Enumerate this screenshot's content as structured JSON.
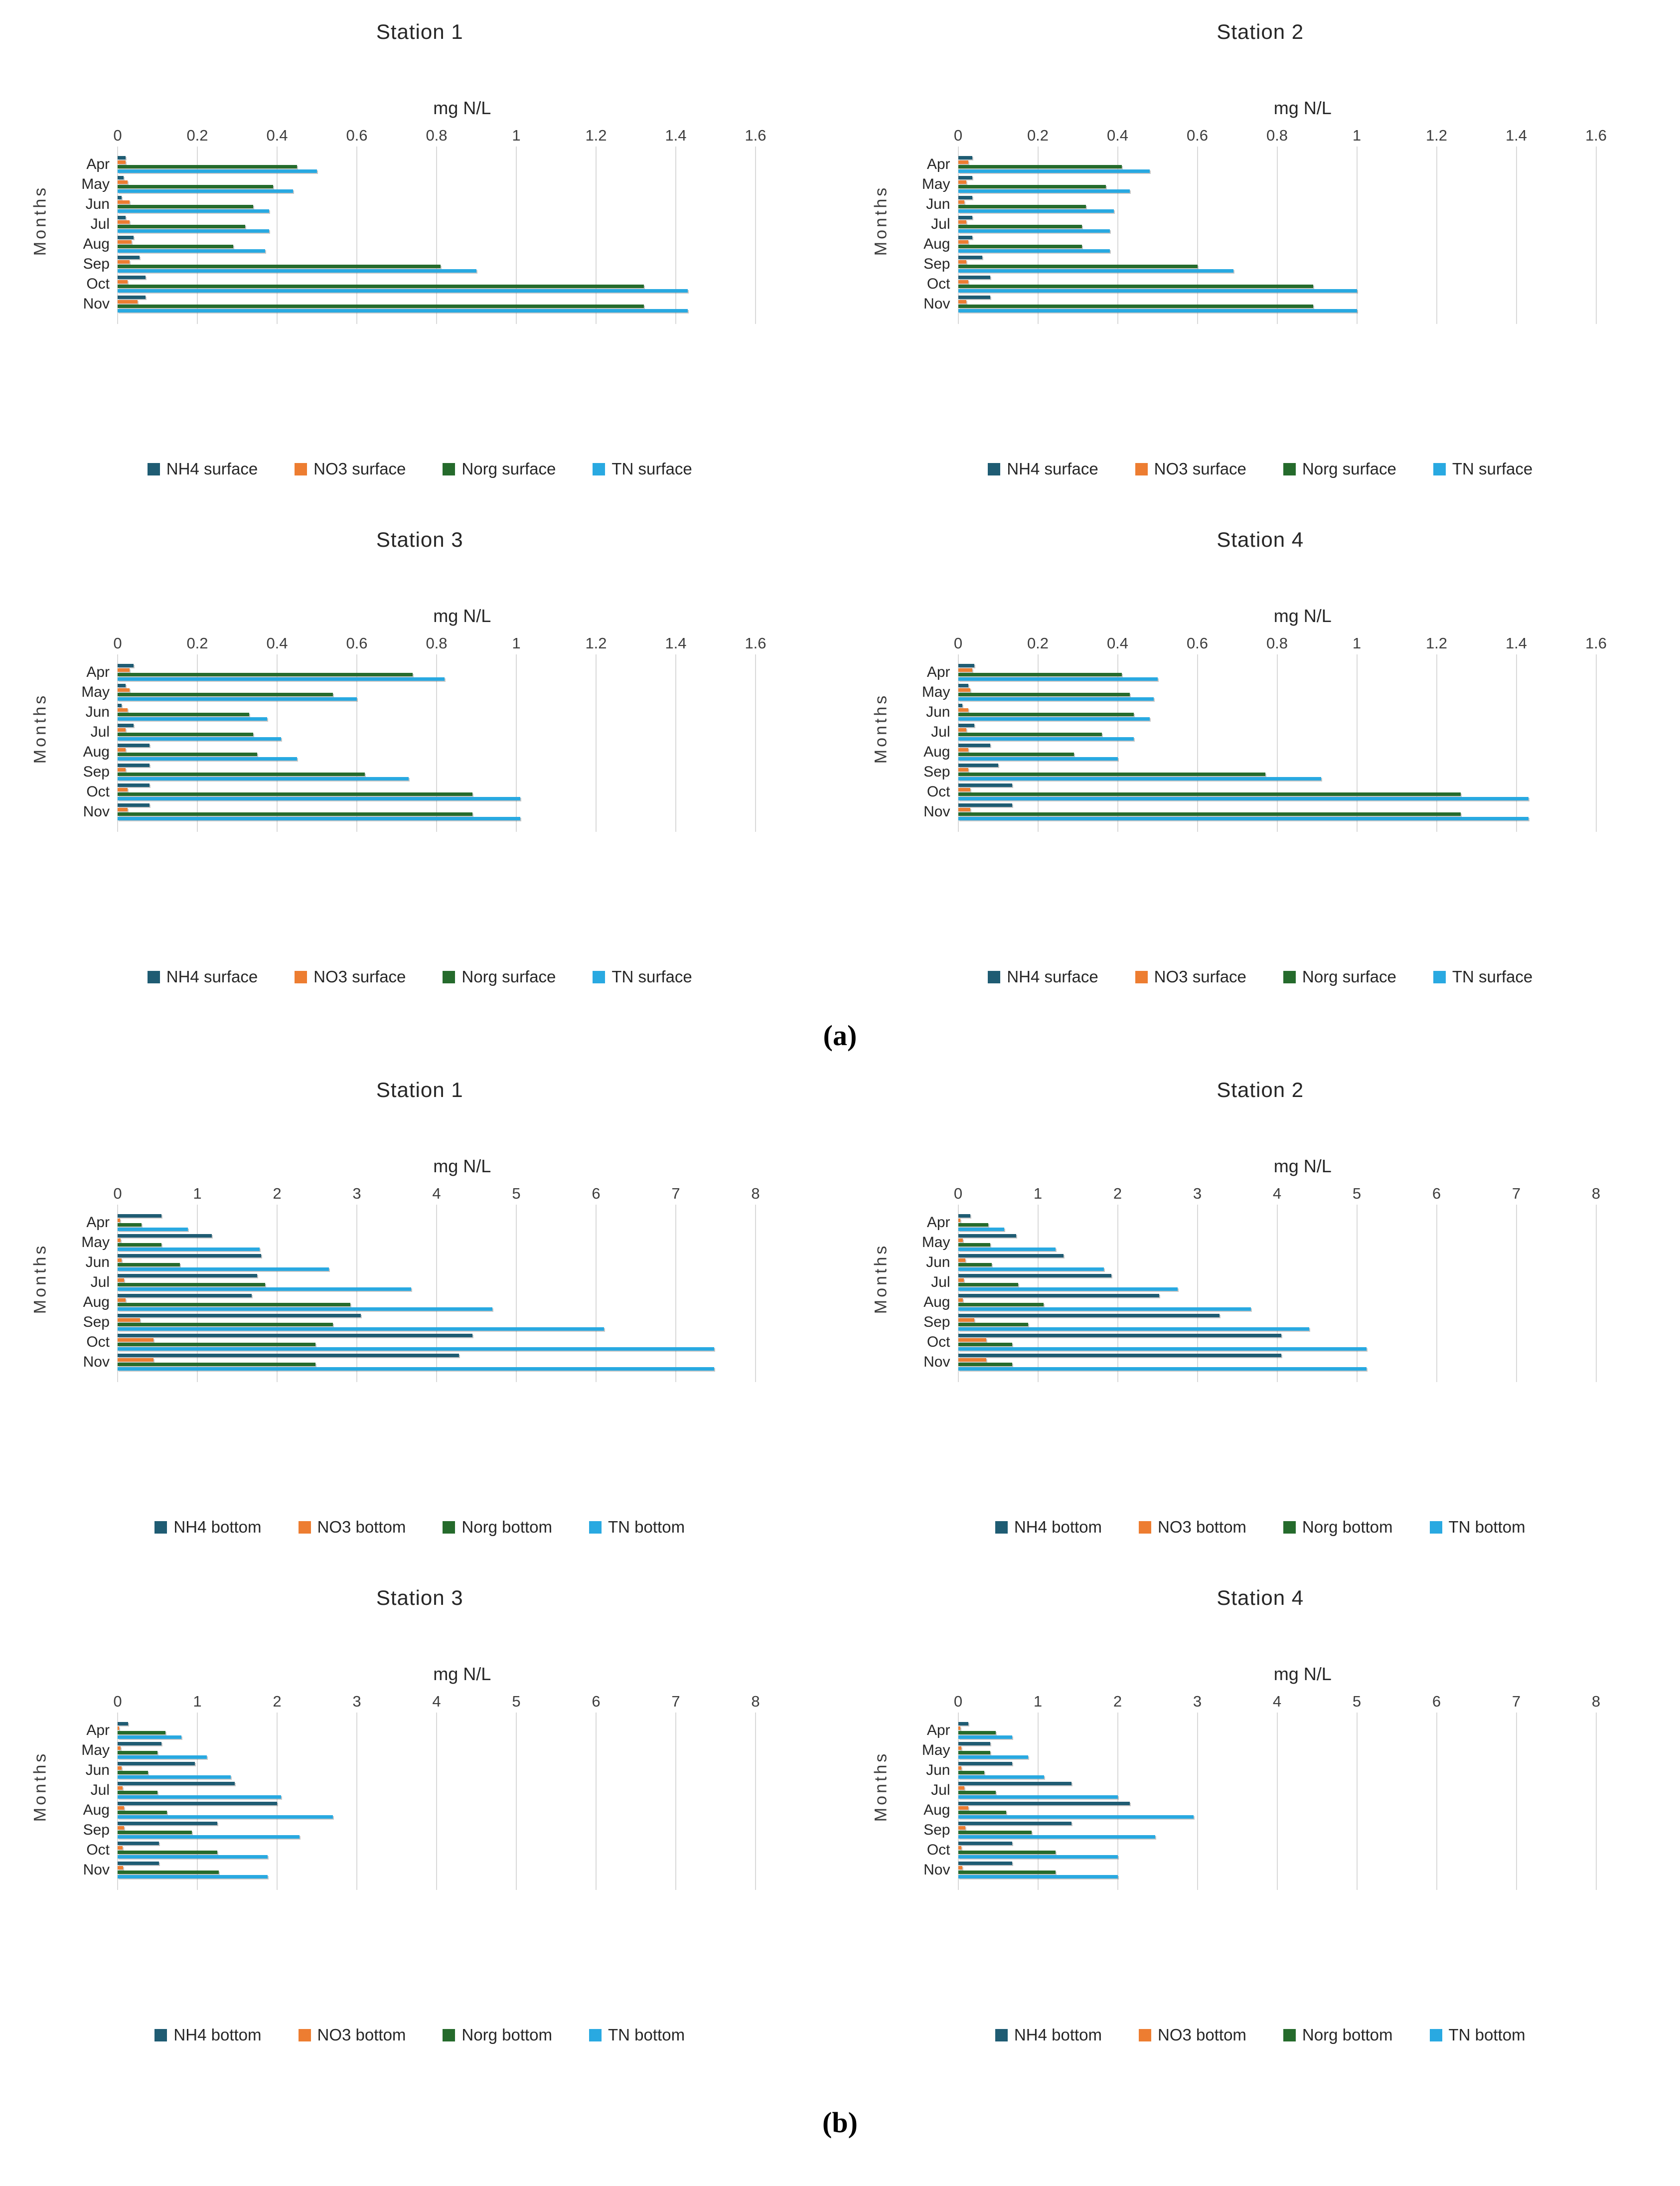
{
  "page": {
    "panel_a_label": "(a)",
    "panel_b_label": "(b)"
  },
  "colors": {
    "nh4": "#1f5c73",
    "no3": "#ed7d31",
    "norg": "#256b2c",
    "tn": "#29a9e1",
    "gridline": "#d9d9d9"
  },
  "chart_data": [
    {
      "type": "bar",
      "panel": "a",
      "title": "Station 1",
      "xlabel": "mg N/L",
      "ylabel": "Months",
      "xlim": [
        0,
        1.6
      ],
      "grid": true,
      "legend_position": "bottom",
      "xtick_labels": [
        "0",
        "0.2",
        "0.4",
        "0.6",
        "0.8",
        "1",
        "1.2",
        "1.4",
        "1.6"
      ],
      "categories": [
        "Apr",
        "May",
        "Jun",
        "Jul",
        "Aug",
        "Sep",
        "Oct",
        "Nov"
      ],
      "series": [
        {
          "name": "NH4 surface",
          "color": "nh4",
          "values": [
            0.02,
            0.015,
            0.01,
            0.02,
            0.04,
            0.055,
            0.07,
            0.07
          ]
        },
        {
          "name": "NO3 surface",
          "color": "no3",
          "values": [
            0.02,
            0.025,
            0.03,
            0.03,
            0.035,
            0.03,
            0.025,
            0.05
          ]
        },
        {
          "name": "Norg surface",
          "color": "norg",
          "values": [
            0.45,
            0.39,
            0.34,
            0.32,
            0.29,
            0.81,
            1.32,
            1.32
          ]
        },
        {
          "name": "TN surface",
          "color": "tn",
          "values": [
            0.5,
            0.44,
            0.38,
            0.38,
            0.37,
            0.9,
            1.43,
            1.43
          ]
        }
      ]
    },
    {
      "type": "bar",
      "panel": "a",
      "title": "Station 2",
      "xlabel": "mg N/L",
      "ylabel": "Months",
      "xlim": [
        0,
        1.6
      ],
      "grid": true,
      "legend_position": "bottom",
      "xtick_labels": [
        "0",
        "0.2",
        "0.4",
        "0.6",
        "0.8",
        "1",
        "1.2",
        "1.4",
        "1.6"
      ],
      "categories": [
        "Apr",
        "May",
        "Jun",
        "Jul",
        "Aug",
        "Sep",
        "Oct",
        "Nov"
      ],
      "series": [
        {
          "name": "NH4 surface",
          "color": "nh4",
          "values": [
            0.035,
            0.035,
            0.035,
            0.035,
            0.035,
            0.06,
            0.08,
            0.08
          ]
        },
        {
          "name": "NO3 surface",
          "color": "no3",
          "values": [
            0.025,
            0.02,
            0.015,
            0.02,
            0.025,
            0.02,
            0.025,
            0.02
          ]
        },
        {
          "name": "Norg surface",
          "color": "norg",
          "values": [
            0.41,
            0.37,
            0.32,
            0.31,
            0.31,
            0.6,
            0.89,
            0.89
          ]
        },
        {
          "name": "TN surface",
          "color": "tn",
          "values": [
            0.48,
            0.43,
            0.39,
            0.38,
            0.38,
            0.69,
            1.0,
            1.0
          ]
        }
      ]
    },
    {
      "type": "bar",
      "panel": "a",
      "title": "Station 3",
      "xlabel": "mg N/L",
      "ylabel": "Months",
      "xlim": [
        0,
        1.6
      ],
      "grid": true,
      "legend_position": "bottom",
      "xtick_labels": [
        "0",
        "0.2",
        "0.4",
        "0.6",
        "0.8",
        "1",
        "1.2",
        "1.4",
        "1.6"
      ],
      "categories": [
        "Apr",
        "May",
        "Jun",
        "Jul",
        "Aug",
        "Sep",
        "Oct",
        "Nov"
      ],
      "series": [
        {
          "name": "NH4 surface",
          "color": "nh4",
          "values": [
            0.04,
            0.02,
            0.01,
            0.04,
            0.08,
            0.08,
            0.08,
            0.08
          ]
        },
        {
          "name": "NO3 surface",
          "color": "no3",
          "values": [
            0.03,
            0.03,
            0.025,
            0.02,
            0.02,
            0.02,
            0.025,
            0.025
          ]
        },
        {
          "name": "Norg surface",
          "color": "norg",
          "values": [
            0.74,
            0.54,
            0.33,
            0.34,
            0.35,
            0.62,
            0.89,
            0.89
          ]
        },
        {
          "name": "TN surface",
          "color": "tn",
          "values": [
            0.82,
            0.6,
            0.375,
            0.41,
            0.45,
            0.73,
            1.01,
            1.01
          ]
        }
      ]
    },
    {
      "type": "bar",
      "panel": "a",
      "title": "Station 4",
      "xlabel": "mg N/L",
      "ylabel": "Months",
      "xlim": [
        0,
        1.6
      ],
      "grid": true,
      "legend_position": "bottom",
      "xtick_labels": [
        "0",
        "0.2",
        "0.4",
        "0.6",
        "0.8",
        "1",
        "1.2",
        "1.4",
        "1.6"
      ],
      "categories": [
        "Apr",
        "May",
        "Jun",
        "Jul",
        "Aug",
        "Sep",
        "Oct",
        "Nov"
      ],
      "series": [
        {
          "name": "NH4 surface",
          "color": "nh4",
          "values": [
            0.04,
            0.025,
            0.01,
            0.04,
            0.08,
            0.1,
            0.135,
            0.135
          ]
        },
        {
          "name": "NO3 surface",
          "color": "no3",
          "values": [
            0.035,
            0.03,
            0.025,
            0.02,
            0.025,
            0.025,
            0.03,
            0.03
          ]
        },
        {
          "name": "Norg surface",
          "color": "norg",
          "values": [
            0.41,
            0.43,
            0.44,
            0.36,
            0.29,
            0.77,
            1.26,
            1.26
          ]
        },
        {
          "name": "TN surface",
          "color": "tn",
          "values": [
            0.5,
            0.49,
            0.48,
            0.44,
            0.4,
            0.91,
            1.43,
            1.43
          ]
        }
      ]
    },
    {
      "type": "bar",
      "panel": "b",
      "title": "Station 1",
      "xlabel": "mg N/L",
      "ylabel": "Months",
      "xlim": [
        0,
        8
      ],
      "grid": true,
      "legend_position": "bottom",
      "xtick_labels": [
        "0",
        "1",
        "2",
        "3",
        "4",
        "5",
        "6",
        "7",
        "8"
      ],
      "categories": [
        "Apr",
        "May",
        "Jun",
        "Jul",
        "Aug",
        "Sep",
        "Oct",
        "Nov"
      ],
      "series": [
        {
          "name": "NH4 bottom",
          "color": "nh4",
          "values": [
            0.55,
            1.18,
            1.8,
            1.75,
            1.68,
            3.05,
            4.45,
            4.28
          ]
        },
        {
          "name": "NO3 bottom",
          "color": "no3",
          "values": [
            0.03,
            0.04,
            0.05,
            0.08,
            0.1,
            0.28,
            0.45,
            0.45
          ]
        },
        {
          "name": "Norg bottom",
          "color": "norg",
          "values": [
            0.3,
            0.55,
            0.78,
            1.85,
            2.92,
            2.7,
            2.48,
            2.48
          ]
        },
        {
          "name": "TN bottom",
          "color": "tn",
          "values": [
            0.88,
            1.78,
            2.65,
            3.68,
            4.7,
            6.1,
            7.48,
            7.48
          ]
        }
      ]
    },
    {
      "type": "bar",
      "panel": "b",
      "title": "Station 2",
      "xlabel": "mg N/L",
      "ylabel": "Months",
      "xlim": [
        0,
        8
      ],
      "grid": true,
      "legend_position": "bottom",
      "xtick_labels": [
        "0",
        "1",
        "2",
        "3",
        "4",
        "5",
        "6",
        "7",
        "8"
      ],
      "categories": [
        "Apr",
        "May",
        "Jun",
        "Jul",
        "Aug",
        "Sep",
        "Oct",
        "Nov"
      ],
      "series": [
        {
          "name": "NH4 bottom",
          "color": "nh4",
          "values": [
            0.15,
            0.73,
            1.32,
            1.92,
            2.52,
            3.28,
            4.05,
            4.05
          ]
        },
        {
          "name": "NO3 bottom",
          "color": "no3",
          "values": [
            0.03,
            0.06,
            0.09,
            0.07,
            0.06,
            0.2,
            0.35,
            0.35
          ]
        },
        {
          "name": "Norg bottom",
          "color": "norg",
          "values": [
            0.38,
            0.4,
            0.42,
            0.75,
            1.07,
            0.88,
            0.68,
            0.68
          ]
        },
        {
          "name": "TN bottom",
          "color": "tn",
          "values": [
            0.58,
            1.22,
            1.83,
            2.75,
            3.67,
            4.4,
            5.12,
            5.12
          ]
        }
      ]
    },
    {
      "type": "bar",
      "panel": "b",
      "title": "Station 3",
      "xlabel": "mg N/L",
      "ylabel": "Months",
      "xlim": [
        0,
        8
      ],
      "grid": true,
      "legend_position": "bottom",
      "xtick_labels": [
        "0",
        "1",
        "2",
        "3",
        "4",
        "5",
        "6",
        "7",
        "8"
      ],
      "categories": [
        "Apr",
        "May",
        "Jun",
        "Jul",
        "Aug",
        "Sep",
        "Oct",
        "Nov"
      ],
      "series": [
        {
          "name": "NH4 bottom",
          "color": "nh4",
          "values": [
            0.13,
            0.55,
            0.97,
            1.47,
            2.0,
            1.25,
            0.52,
            0.52
          ]
        },
        {
          "name": "NO3 bottom",
          "color": "no3",
          "values": [
            0.02,
            0.04,
            0.05,
            0.06,
            0.08,
            0.08,
            0.06,
            0.07
          ]
        },
        {
          "name": "Norg bottom",
          "color": "norg",
          "values": [
            0.6,
            0.5,
            0.38,
            0.5,
            0.62,
            0.93,
            1.25,
            1.27
          ]
        },
        {
          "name": "TN bottom",
          "color": "tn",
          "values": [
            0.8,
            1.12,
            1.42,
            2.05,
            2.7,
            2.28,
            1.88,
            1.88
          ]
        }
      ]
    },
    {
      "type": "bar",
      "panel": "b",
      "title": "Station 4",
      "xlabel": "mg N/L",
      "ylabel": "Months",
      "xlim": [
        0,
        8
      ],
      "grid": true,
      "legend_position": "bottom",
      "xtick_labels": [
        "0",
        "1",
        "2",
        "3",
        "4",
        "5",
        "6",
        "7",
        "8"
      ],
      "categories": [
        "Apr",
        "May",
        "Jun",
        "Jul",
        "Aug",
        "Sep",
        "Oct",
        "Nov"
      ],
      "series": [
        {
          "name": "NH4 bottom",
          "color": "nh4",
          "values": [
            0.13,
            0.4,
            0.68,
            1.42,
            2.15,
            1.42,
            0.68,
            0.68
          ]
        },
        {
          "name": "NO3 bottom",
          "color": "no3",
          "values": [
            0.03,
            0.04,
            0.04,
            0.08,
            0.13,
            0.09,
            0.04,
            0.05
          ]
        },
        {
          "name": "Norg bottom",
          "color": "norg",
          "values": [
            0.47,
            0.4,
            0.33,
            0.47,
            0.6,
            0.92,
            1.22,
            1.22
          ]
        },
        {
          "name": "TN bottom",
          "color": "tn",
          "values": [
            0.68,
            0.88,
            1.08,
            2.0,
            2.95,
            2.47,
            2.0,
            2.0
          ]
        }
      ]
    }
  ]
}
